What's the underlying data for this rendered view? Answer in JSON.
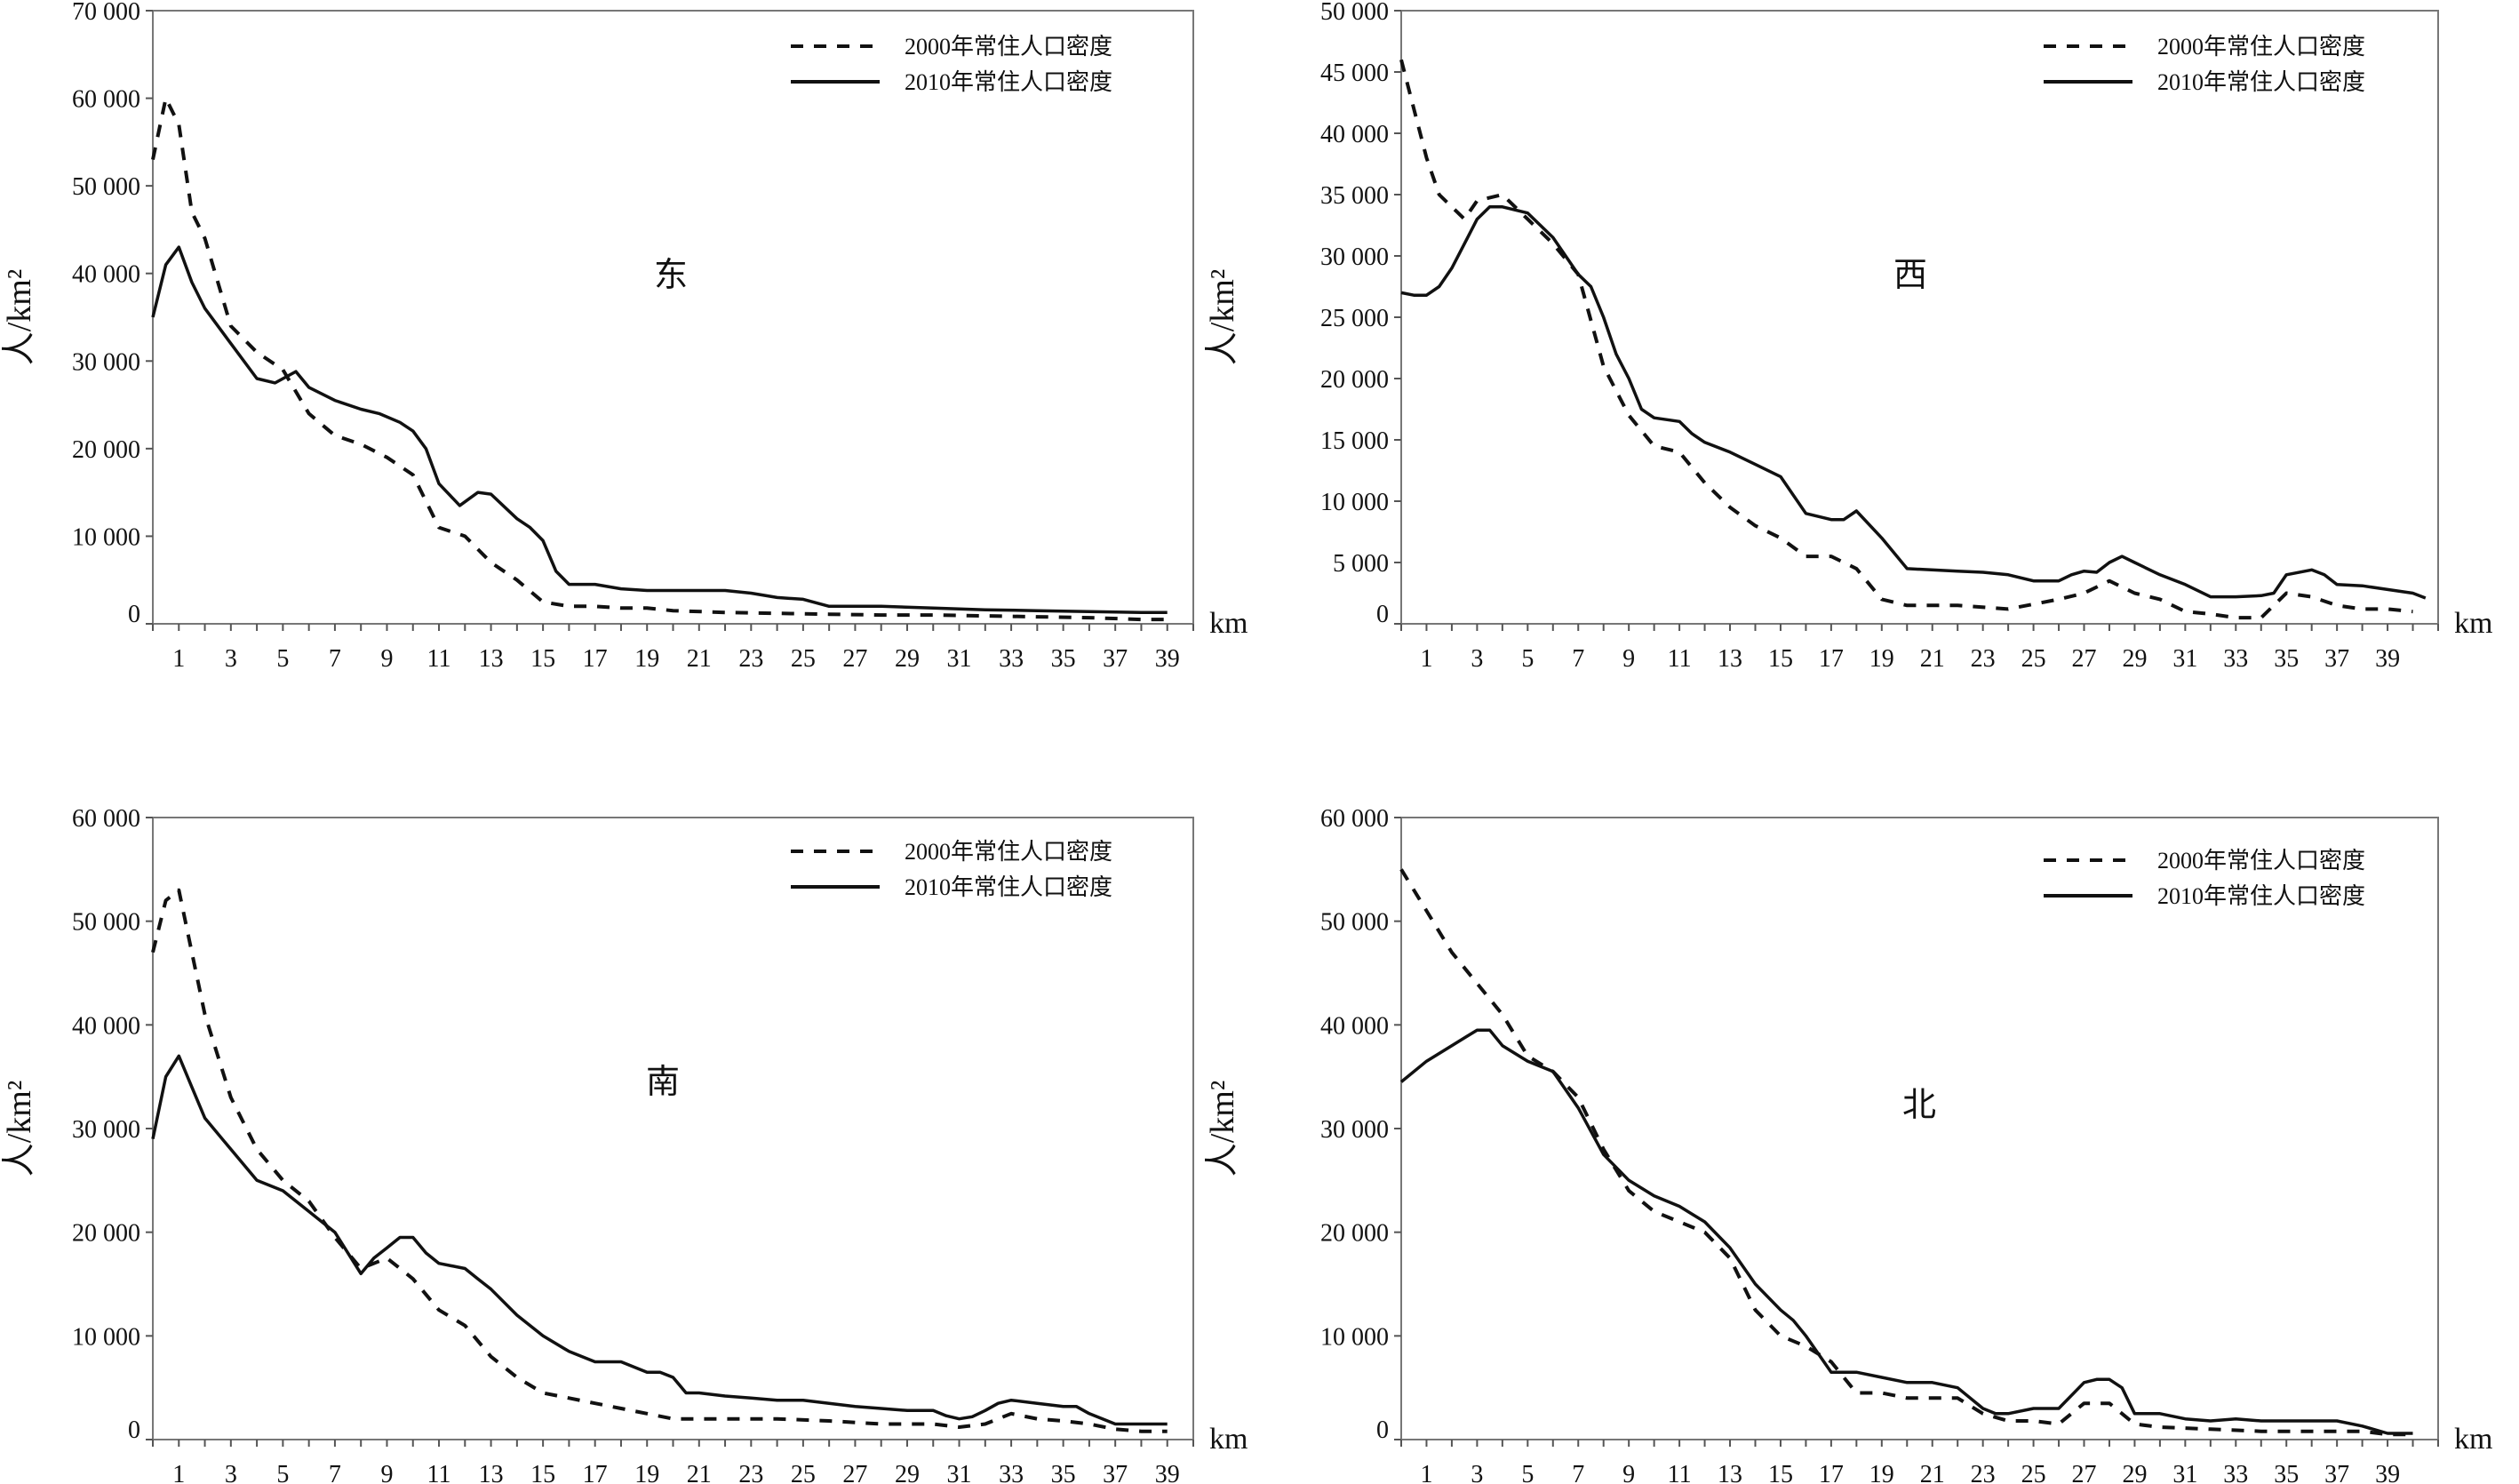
{
  "charts": [
    {
      "chart_data": {
        "type": "line",
        "title": "东",
        "ylabel": "人/km²",
        "xlabel": "km",
        "ylim": [
          0,
          70000
        ],
        "xlim": [
          0,
          40
        ],
        "grid": false,
        "legend_position": "top-right",
        "yticks": [
          0,
          10000,
          20000,
          30000,
          40000,
          50000,
          60000,
          70000
        ],
        "ytick_labels": [
          "0",
          "10 000",
          "20 000",
          "30 000",
          "40 000",
          "50 000",
          "60 000",
          "70 000"
        ],
        "xticks": [
          1,
          3,
          5,
          7,
          9,
          11,
          13,
          15,
          17,
          19,
          21,
          23,
          25,
          27,
          29,
          31,
          33,
          35,
          37,
          39
        ],
        "series": [
          {
            "name": "2000年常住人口密度",
            "style": "dashed",
            "x": [
              0,
              0.5,
              1,
              1.5,
              2,
              3,
              4,
              5,
              6,
              7,
              8,
              9,
              10,
              11,
              12,
              13,
              14,
              15,
              16,
              17,
              18,
              19,
              20,
              22,
              24,
              26,
              28,
              30,
              32,
              34,
              36,
              38,
              39
            ],
            "y": [
              53000,
              60000,
              57000,
              47000,
              44000,
              34000,
              31000,
              29000,
              24000,
              21500,
              20500,
              19000,
              17000,
              11000,
              10000,
              7000,
              5000,
              2500,
              2000,
              2000,
              1800,
              1800,
              1500,
              1300,
              1200,
              1100,
              1000,
              1000,
              900,
              800,
              700,
              500,
              500
            ]
          },
          {
            "name": "2010年常住人口密度",
            "style": "solid",
            "x": [
              0,
              0.5,
              1,
              1.5,
              2,
              3,
              4,
              4.7,
              5.5,
              6,
              7,
              8,
              8.7,
              9.5,
              10,
              10.5,
              11,
              11.8,
              12.5,
              13,
              14,
              14.5,
              15,
              15.5,
              16,
              17,
              18,
              19,
              20,
              22,
              23,
              24,
              25,
              26,
              28,
              30,
              32,
              34,
              36,
              38,
              39
            ],
            "y": [
              35000,
              41000,
              43000,
              39000,
              36000,
              32000,
              28000,
              27500,
              28800,
              27000,
              25500,
              24500,
              24000,
              23000,
              22000,
              20000,
              16000,
              13500,
              15000,
              14800,
              12000,
              11000,
              9500,
              6000,
              4500,
              4500,
              4000,
              3800,
              3800,
              3800,
              3500,
              3000,
              2800,
              2000,
              2000,
              1800,
              1600,
              1500,
              1400,
              1300,
              1300
            ]
          }
        ]
      }
    },
    {
      "chart_data": {
        "type": "line",
        "title": "西",
        "ylabel": "人/km²",
        "xlabel": "km",
        "ylim": [
          0,
          50000
        ],
        "xlim": [
          0,
          41
        ],
        "grid": false,
        "legend_position": "top-right",
        "yticks": [
          0,
          5000,
          10000,
          15000,
          20000,
          25000,
          30000,
          35000,
          40000,
          45000,
          50000
        ],
        "ytick_labels": [
          "0",
          "5 000",
          "10 000",
          "15 000",
          "20 000",
          "25 000",
          "30 000",
          "35 000",
          "40 000",
          "45 000",
          "50 000"
        ],
        "xticks": [
          1,
          3,
          5,
          7,
          9,
          11,
          13,
          15,
          17,
          19,
          21,
          23,
          25,
          27,
          29,
          31,
          33,
          35,
          37,
          39
        ],
        "series": [
          {
            "name": "2000年常住人口密度",
            "style": "dashed",
            "x": [
              0,
              0.5,
              1,
              1.5,
              2,
              2.5,
              3,
              4,
              5,
              6,
              7,
              8,
              9,
              10,
              11,
              12,
              13,
              14,
              15,
              16,
              17,
              18,
              19,
              20,
              22,
              24,
              26,
              27,
              28,
              29,
              30,
              31,
              32,
              33,
              34,
              35,
              36,
              37,
              38,
              39,
              40
            ],
            "y": [
              46000,
              42000,
              38000,
              35000,
              34000,
              33000,
              34500,
              35000,
              33000,
              31000,
              28500,
              21000,
              17000,
              14500,
              14000,
              11500,
              9500,
              8000,
              7000,
              5500,
              5500,
              4500,
              2000,
              1500,
              1500,
              1200,
              2000,
              2500,
              3500,
              2500,
              2000,
              1000,
              800,
              500,
              500,
              2500,
              2200,
              1500,
              1200,
              1200,
              1000
            ]
          },
          {
            "name": "2010年常住人口密度",
            "style": "solid",
            "x": [
              0,
              0.5,
              1,
              1.5,
              2,
              2.5,
              3,
              3.5,
              4,
              5,
              6,
              7,
              7.5,
              8,
              8.5,
              9,
              9.5,
              10,
              11,
              11.5,
              12,
              13,
              14,
              15,
              15.5,
              16,
              17,
              17.5,
              18,
              19,
              20,
              22,
              23,
              24,
              25,
              26,
              26.5,
              27,
              27.5,
              28,
              28.5,
              29,
              30,
              31,
              32,
              33,
              34,
              34.5,
              35,
              36,
              36.5,
              37,
              38,
              39,
              40,
              40.5
            ],
            "y": [
              27000,
              26800,
              26800,
              27500,
              29000,
              31000,
              33000,
              34000,
              34000,
              33500,
              31500,
              28500,
              27500,
              25000,
              22000,
              20000,
              17500,
              16800,
              16500,
              15500,
              14800,
              14000,
              13000,
              12000,
              10500,
              9000,
              8500,
              8500,
              9200,
              7000,
              4500,
              4300,
              4200,
              4000,
              3500,
              3500,
              4000,
              4300,
              4200,
              5000,
              5500,
              5000,
              4000,
              3200,
              2200,
              2200,
              2300,
              2500,
              4000,
              4400,
              4000,
              3200,
              3100,
              2800,
              2500,
              2100
            ]
          }
        ]
      }
    },
    {
      "chart_data": {
        "type": "line",
        "title": "南",
        "ylabel": "人/km²",
        "xlabel": "km",
        "ylim": [
          0,
          60000
        ],
        "xlim": [
          0,
          40
        ],
        "grid": false,
        "legend_position": "top-right",
        "yticks": [
          0,
          10000,
          20000,
          30000,
          40000,
          50000,
          60000
        ],
        "ytick_labels": [
          "0",
          "10 000",
          "20 000",
          "30 000",
          "40 000",
          "50 000",
          "60 000"
        ],
        "xticks": [
          1,
          3,
          5,
          7,
          9,
          11,
          13,
          15,
          17,
          19,
          21,
          23,
          25,
          27,
          29,
          31,
          33,
          35,
          37,
          39
        ],
        "series": [
          {
            "name": "2000年常住人口密度",
            "style": "dashed",
            "x": [
              0,
              0.5,
              1,
              1.5,
              2,
              3,
              4,
              5,
              6,
              7,
              8,
              9,
              10,
              11,
              12,
              13,
              14,
              15,
              16,
              17,
              18,
              19,
              20,
              22,
              24,
              26,
              28,
              30,
              31,
              32,
              33,
              34,
              35,
              36,
              37,
              38,
              39
            ],
            "y": [
              47000,
              52000,
              53000,
              47000,
              41000,
              33000,
              28000,
              25000,
              23000,
              19500,
              16500,
              17500,
              15500,
              12500,
              11000,
              8000,
              6000,
              4500,
              4000,
              3500,
              3000,
              2500,
              2000,
              2000,
              2000,
              1800,
              1500,
              1500,
              1200,
              1500,
              2500,
              2000,
              1800,
              1500,
              1000,
              800,
              800
            ]
          },
          {
            "name": "2010年常住人口密度",
            "style": "solid",
            "x": [
              0,
              0.5,
              1,
              1.5,
              2,
              3,
              4,
              5,
              6,
              7,
              8,
              8.5,
              9,
              9.5,
              10,
              10.5,
              11,
              12,
              12.5,
              13,
              14,
              15,
              16,
              17,
              18,
              19,
              19.5,
              20,
              20.5,
              21,
              22,
              23,
              24,
              25,
              26,
              27,
              28,
              29,
              30,
              30.5,
              31,
              31.5,
              32,
              32.5,
              33,
              34,
              35,
              35.5,
              36,
              37,
              38,
              39
            ],
            "y": [
              29000,
              35000,
              37000,
              34000,
              31000,
              28000,
              25000,
              24000,
              22000,
              20000,
              16000,
              17500,
              18500,
              19500,
              19500,
              18000,
              17000,
              16500,
              15500,
              14500,
              12000,
              10000,
              8500,
              7500,
              7500,
              6500,
              6500,
              6000,
              4500,
              4500,
              4200,
              4000,
              3800,
              3800,
              3500,
              3200,
              3000,
              2800,
              2800,
              2300,
              2000,
              2200,
              2800,
              3500,
              3800,
              3500,
              3200,
              3200,
              2500,
              1500,
              1500,
              1500
            ]
          }
        ]
      }
    },
    {
      "chart_data": {
        "type": "line",
        "title": "北",
        "ylabel": "人/km²",
        "xlabel": "km",
        "ylim": [
          0,
          60000
        ],
        "xlim": [
          0,
          41
        ],
        "grid": false,
        "legend_position": "top-right",
        "yticks": [
          0,
          10000,
          20000,
          30000,
          40000,
          50000,
          60000
        ],
        "ytick_labels": [
          "0",
          "10 000",
          "20 000",
          "30 000",
          "40 000",
          "50 000",
          "60 000"
        ],
        "xticks": [
          1,
          3,
          5,
          7,
          9,
          11,
          13,
          15,
          17,
          19,
          21,
          23,
          25,
          27,
          29,
          31,
          33,
          35,
          37,
          39
        ],
        "series": [
          {
            "name": "2000年常住人口密度",
            "style": "dashed",
            "x": [
              0,
              1,
              2,
              3,
              4,
              5,
              6,
              7,
              8,
              9,
              10,
              11,
              12,
              13,
              14,
              15,
              16,
              17,
              18,
              19,
              20,
              21,
              22,
              23,
              24,
              25,
              26,
              27,
              28,
              29,
              30,
              32,
              34,
              36,
              38,
              39,
              40
            ],
            "y": [
              55000,
              51000,
              47000,
              44000,
              41000,
              37000,
              35500,
              33000,
              28000,
              24000,
              22000,
              21000,
              20000,
              17500,
              12500,
              10000,
              9000,
              7500,
              4500,
              4500,
              4000,
              4000,
              4000,
              2500,
              1800,
              1800,
              1500,
              3500,
              3500,
              1500,
              1200,
              1000,
              800,
              800,
              800,
              500,
              500
            ]
          },
          {
            "name": "2010年常住人口密度",
            "style": "solid",
            "x": [
              0,
              1,
              2,
              3,
              3.5,
              4,
              5,
              6,
              7,
              8,
              9,
              10,
              11,
              12,
              13,
              14,
              15,
              15.5,
              16,
              17,
              17.5,
              18,
              19,
              20,
              21,
              22,
              23,
              23.5,
              24,
              25,
              26,
              27,
              27.5,
              28,
              28.5,
              29,
              30,
              31,
              32,
              33,
              34,
              35,
              36,
              37,
              38,
              39,
              40
            ],
            "y": [
              34500,
              36500,
              38000,
              39500,
              39500,
              38000,
              36500,
              35500,
              32000,
              27500,
              25000,
              23500,
              22500,
              21000,
              18500,
              15000,
              12500,
              11500,
              10000,
              6500,
              6500,
              6500,
              6000,
              5500,
              5500,
              5000,
              3000,
              2500,
              2500,
              3000,
              3000,
              5500,
              5800,
              5800,
              5000,
              2500,
              2500,
              2000,
              1800,
              2000,
              1800,
              1800,
              1800,
              1800,
              1300,
              600,
              600
            ]
          }
        ]
      }
    }
  ]
}
